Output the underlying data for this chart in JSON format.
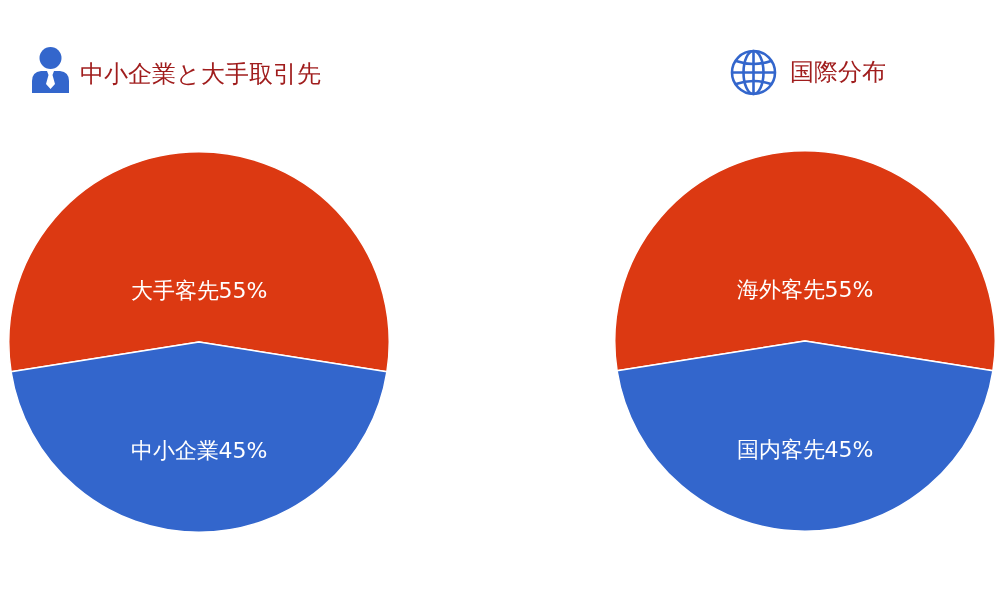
{
  "chart_data": [
    {
      "type": "pie",
      "title": "中小企業と大手取引先",
      "categories": [
        "大手客先",
        "中小企業"
      ],
      "values": [
        55,
        45
      ],
      "colors": [
        "#dc3912",
        "#3366cc"
      ],
      "value_labels": [
        "55%",
        "45%"
      ]
    },
    {
      "type": "pie",
      "title": "国際分布",
      "categories": [
        "海外客先",
        "国内客先"
      ],
      "values": [
        55,
        45
      ],
      "colors": [
        "#dc3912",
        "#3366cc"
      ],
      "value_labels": [
        "55%",
        "45%"
      ]
    }
  ]
}
